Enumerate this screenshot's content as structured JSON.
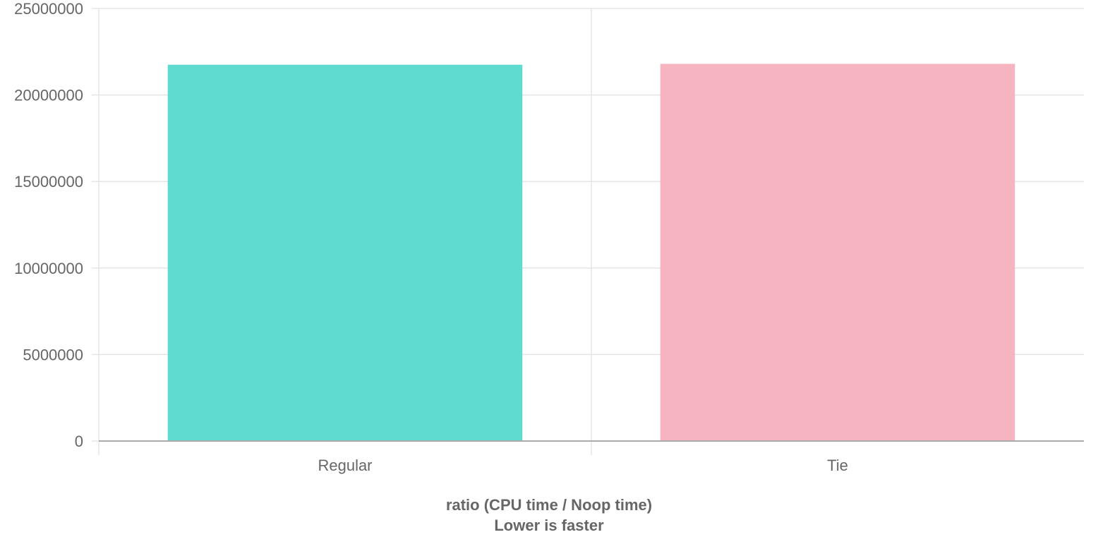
{
  "chart_data": {
    "type": "bar",
    "categories": [
      "Regular",
      "Tie"
    ],
    "values": [
      21750000,
      21800000
    ],
    "colors": [
      "#5fdbd0",
      "#f6b4c1"
    ],
    "xlabel_lines": [
      "ratio (CPU time / Noop time)",
      "Lower is faster"
    ],
    "ylabel": "",
    "ylim": [
      0,
      25000000
    ],
    "y_ticks": [
      "0",
      "5000000",
      "10000000",
      "15000000",
      "20000000",
      "25000000"
    ],
    "y_tick_values": [
      0,
      5000000,
      10000000,
      15000000,
      20000000,
      25000000
    ],
    "grid": true,
    "legend": "none"
  }
}
